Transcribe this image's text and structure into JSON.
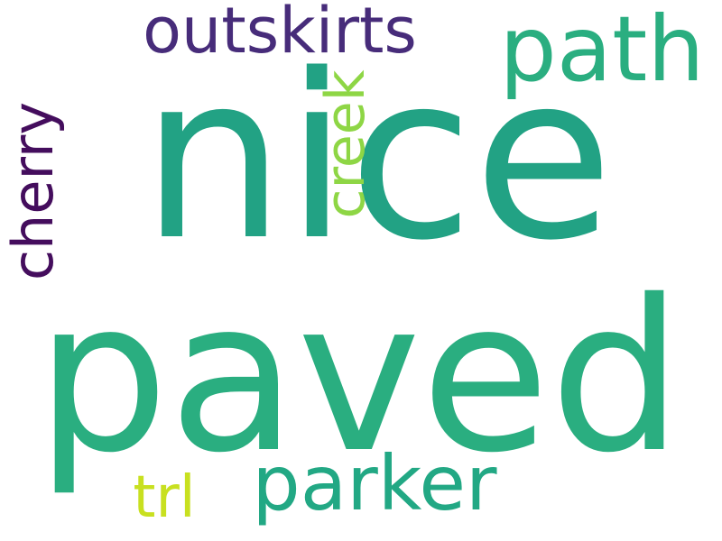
{
  "words": {
    "nice": {
      "text": "nice",
      "color": "#22a284"
    },
    "paved": {
      "text": "paved",
      "color": "#2aae80"
    },
    "path": {
      "text": "path",
      "color": "#2aae80"
    },
    "outskirts": {
      "text": "outskirts",
      "color": "#472c7a"
    },
    "cherry": {
      "text": "cherry",
      "color": "#440d5d"
    },
    "creek": {
      "text": "creek",
      "color": "#8ed645"
    },
    "parker": {
      "text": "parker",
      "color": "#22a884"
    },
    "trl": {
      "text": "trl",
      "color": "#c8e020"
    }
  }
}
